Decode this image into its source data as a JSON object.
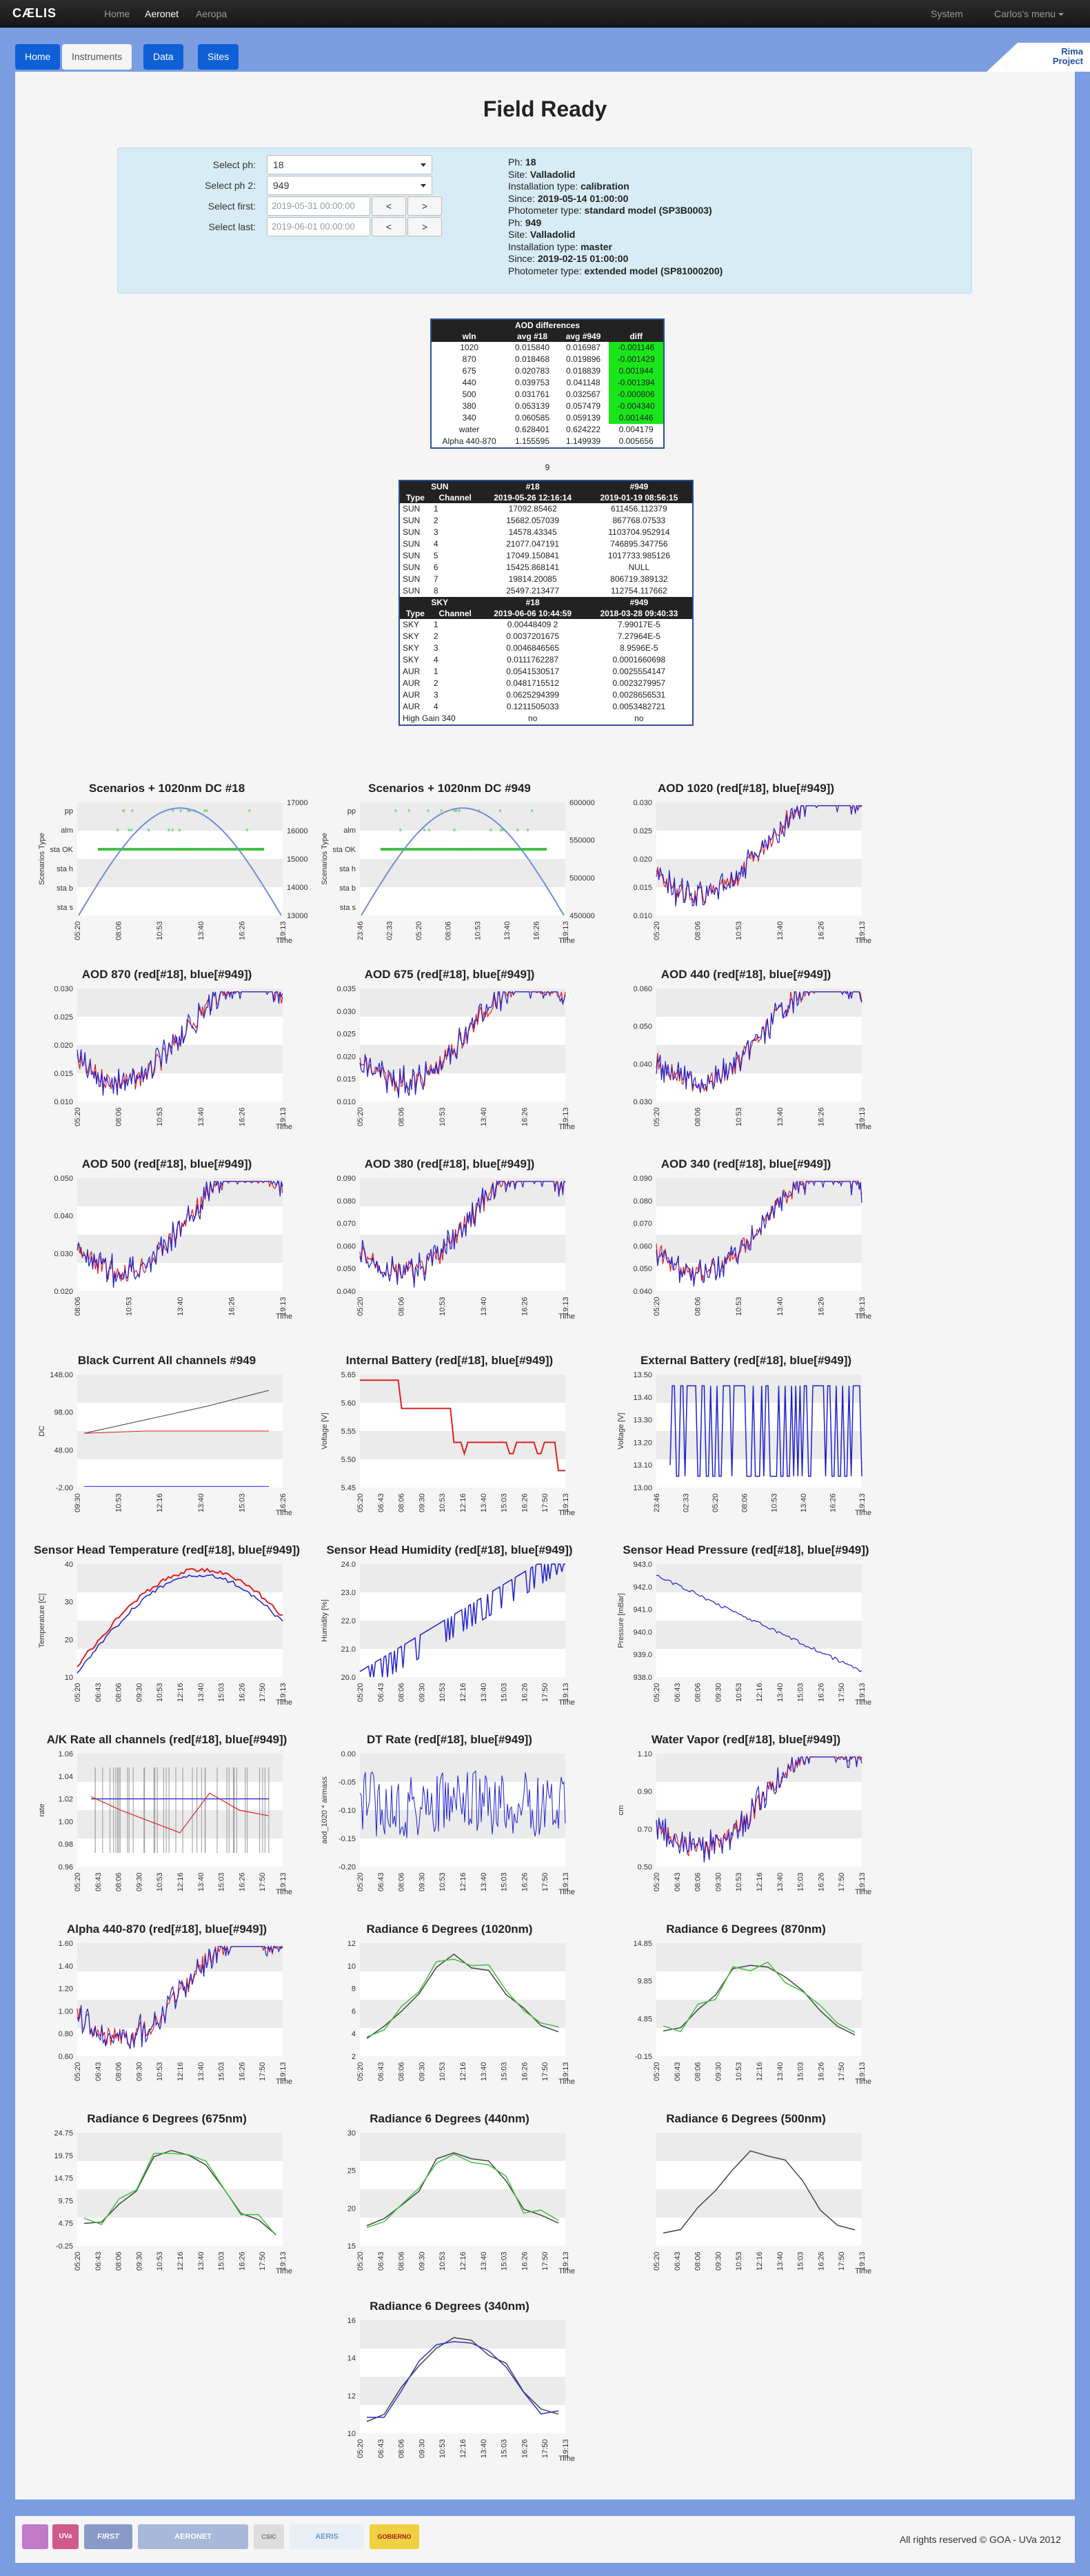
{
  "navbar": {
    "brand": "CÆLIS",
    "links": [
      "Home",
      "Aeronet",
      "Aeropa"
    ],
    "system": "System",
    "user_menu": "Carlos's menu"
  },
  "subnav": {
    "tabs": [
      "Home",
      "Instruments",
      "Data",
      "Sites"
    ]
  },
  "rima": {
    "line1": "Rima",
    "line2": "Project"
  },
  "page": {
    "title": "Field Ready"
  },
  "form": {
    "ph_label": "Select ph:",
    "ph_value": "18",
    "ph2_label": "Select ph 2:",
    "ph2_value": "949",
    "first_label": "Select first:",
    "first_value": "2019-05-31 00:00:00",
    "last_label": "Select last:",
    "last_value": "2019-06-01 00:00:00",
    "prev": "<",
    "next": ">"
  },
  "info1": {
    "ph_label": "Ph:",
    "ph": "18",
    "site_label": "Site:",
    "site": "Valladolid",
    "inst_label": "Installation type:",
    "inst": "calibration",
    "since_label": "Since:",
    "since": "2019-05-14 01:00:00",
    "model_label": "Photometer type:",
    "model": "standard model (SP3B0003)"
  },
  "info2": {
    "ph_label": "Ph:",
    "ph": "949",
    "site_label": "Site:",
    "site": "Valladolid",
    "inst_label": "Installation type:",
    "inst": "master",
    "since_label": "Since:",
    "since": "2019-02-15 01:00:00",
    "model_label": "Photometer type:",
    "model": "extended model (SP81000200)"
  },
  "aod_table": {
    "title": "AOD differences",
    "headers": [
      "wln",
      "avg #18",
      "avg #949",
      "diff"
    ],
    "rows": [
      [
        "1020",
        "0.015840",
        "0.016987",
        "-0.001146"
      ],
      [
        "870",
        "0.018468",
        "0.019896",
        "-0.001429"
      ],
      [
        "675",
        "0.020783",
        "0.018839",
        "0.001944"
      ],
      [
        "440",
        "0.039753",
        "0.041148",
        "-0.001394"
      ],
      [
        "500",
        "0.031761",
        "0.032567",
        "-0.000806"
      ],
      [
        "380",
        "0.053139",
        "0.057479",
        "-0.004340"
      ],
      [
        "340",
        "0.060585",
        "0.059139",
        "0.001446"
      ],
      [
        "water",
        "0.628401",
        "0.624222",
        "0.004179"
      ],
      [
        "Alpha 440-870",
        "1.155595",
        "1.149939",
        "0.005656"
      ]
    ],
    "count": "9"
  },
  "cal_table": {
    "sun_title": "SUN",
    "h18": "#18",
    "h949": "#949",
    "type_hdr": "Type",
    "chan_hdr": "Channel",
    "sun_date18": "2019-05-26 12:16:14",
    "sun_date949": "2019-01-19 08:56:15",
    "sun_rows": [
      [
        "SUN",
        "1",
        "17092.85462",
        "611456.112379"
      ],
      [
        "SUN",
        "2",
        "15682.057039",
        "867768.07533"
      ],
      [
        "SUN",
        "3",
        "14578.43345",
        "1103704.952914"
      ],
      [
        "SUN",
        "4",
        "21077.047191",
        "746895.347756"
      ],
      [
        "SUN",
        "5",
        "17049.150841",
        "1017733.985126"
      ],
      [
        "SUN",
        "6",
        "15425.868141",
        "NULL"
      ],
      [
        "SUN",
        "7",
        "19814.20085",
        "806719.389132"
      ],
      [
        "SUN",
        "8",
        "25497.213477",
        "112754.117662"
      ]
    ],
    "sky_title": "SKY",
    "sky_date18": "2019-06-06 10:44:59",
    "sky_date949": "2018-03-28 09:40:33",
    "sky_rows": [
      [
        "SKY",
        "1",
        "0.00448409 2",
        "7.99017E-5"
      ],
      [
        "SKY",
        "2",
        "0.0037201675",
        "7.27964E-5"
      ],
      [
        "SKY",
        "3",
        "0.0046846565",
        "8.9596E-5"
      ],
      [
        "SKY",
        "4",
        "0.0111762287",
        "0.0001660698"
      ],
      [
        "AUR",
        "1",
        "0.0541530517",
        "0.0025554147"
      ],
      [
        "AUR",
        "2",
        "0.0481715512",
        "0.0023279957"
      ],
      [
        "AUR",
        "3",
        "0.0625294399",
        "0.0028656531"
      ],
      [
        "AUR",
        "4",
        "0.1211505033",
        "0.0053482721"
      ]
    ],
    "hg_label": "High Gain 340",
    "hg18": "no",
    "hg949": "no"
  },
  "charts": [
    {
      "title": "Scenarios + 1020nm DC #18",
      "ylabel": "Scenarios Type",
      "xlabel": "Time",
      "cats": [
        "pp",
        "alm",
        "sta OK",
        "sta h",
        "sta b",
        "sta s"
      ],
      "y2": [
        "17000",
        "16000",
        "15000",
        "14000",
        "13000"
      ],
      "xt": [
        "05:20",
        "08:06",
        "10:53",
        "13:40",
        "16:26",
        "19:13"
      ],
      "kind": "scen"
    },
    {
      "title": "Scenarios + 1020nm DC #949",
      "ylabel": "Scenarios Type",
      "xlabel": "Time",
      "cats": [
        "pp",
        "alm",
        "sta OK",
        "sta h",
        "sta b",
        "sta s"
      ],
      "y2": [
        "600000",
        "550000",
        "500000",
        "450000"
      ],
      "xt": [
        "23:46",
        "02:33",
        "05:20",
        "08:06",
        "10:53",
        "13:40",
        "16:26",
        "19:13"
      ],
      "kind": "scen"
    },
    {
      "title": "AOD 1020 (red[#18], blue[#949])",
      "ylabel": "",
      "xlabel": "Time",
      "yt": [
        "0.030",
        "0.025",
        "0.020",
        "0.015",
        "0.010"
      ],
      "xt": [
        "05:20",
        "08:06",
        "10:53",
        "13:40",
        "16:26",
        "19:13"
      ],
      "kind": "aod"
    },
    {
      "title": "AOD 870 (red[#18], blue[#949])",
      "ylabel": "",
      "xlabel": "Time",
      "yt": [
        "0.030",
        "0.025",
        "0.020",
        "0.015",
        "0.010"
      ],
      "xt": [
        "05:20",
        "08:06",
        "10:53",
        "13:40",
        "16:26",
        "19:13"
      ],
      "kind": "aod"
    },
    {
      "title": "AOD 675 (red[#18], blue[#949])",
      "ylabel": "",
      "xlabel": "Time",
      "yt": [
        "0.035",
        "0.030",
        "0.025",
        "0.020",
        "0.015",
        "0.010"
      ],
      "xt": [
        "05:20",
        "08:06",
        "10:53",
        "13:40",
        "16:26",
        "19:13"
      ],
      "kind": "aod"
    },
    {
      "title": "AOD 440 (red[#18], blue[#949])",
      "ylabel": "",
      "xlabel": "Time",
      "yt": [
        "0.060",
        "0.050",
        "0.040",
        "0.030"
      ],
      "xt": [
        "05:20",
        "08:06",
        "10:53",
        "13:40",
        "16:26",
        "19:13"
      ],
      "kind": "aod"
    },
    {
      "title": "AOD 500 (red[#18], blue[#949])",
      "ylabel": "",
      "xlabel": "Time",
      "yt": [
        "0.050",
        "0.040",
        "0.030",
        "0.020"
      ],
      "xt": [
        "08:06",
        "10:53",
        "13:40",
        "16:26",
        "19:13"
      ],
      "kind": "aod"
    },
    {
      "title": "AOD 380 (red[#18], blue[#949])",
      "ylabel": "",
      "xlabel": "Time",
      "yt": [
        "0.090",
        "0.080",
        "0.070",
        "0.060",
        "0.050",
        "0.040"
      ],
      "xt": [
        "05:20",
        "08:06",
        "10:53",
        "13:40",
        "16:26",
        "19:13"
      ],
      "kind": "aod"
    },
    {
      "title": "AOD 340 (red[#18], blue[#949])",
      "ylabel": "",
      "xlabel": "Time",
      "yt": [
        "0.090",
        "0.080",
        "0.070",
        "0.060",
        "0.050",
        "0.040"
      ],
      "xt": [
        "05:20",
        "08:06",
        "10:53",
        "13:40",
        "16:26",
        "19:13"
      ],
      "kind": "aod"
    },
    {
      "title": "Black Current All channels #949",
      "ylabel": "DC",
      "xlabel": "Time",
      "yt": [
        "148.00",
        "98.00",
        "48.00",
        "-2.00"
      ],
      "xt": [
        "09:30",
        "10:53",
        "12:16",
        "13:40",
        "15:03",
        "16:26"
      ],
      "kind": "bc"
    },
    {
      "title": "Internal Battery (red[#18], blue[#949])",
      "ylabel": "Voltage [V]",
      "xlabel": "Time",
      "yt": [
        "5.65",
        "5.60",
        "5.55",
        "5.50",
        "5.45"
      ],
      "xt": [
        "05:20",
        "06:43",
        "08:06",
        "09:30",
        "10:53",
        "12:16",
        "13:40",
        "15:03",
        "16:26",
        "17:50",
        "19:13"
      ],
      "kind": "ib"
    },
    {
      "title": "External Battery (red[#18], blue[#949])",
      "ylabel": "Voltage [V]",
      "xlabel": "Time",
      "yt": [
        "13.50",
        "13.40",
        "13.30",
        "13.20",
        "13.10",
        "13.00"
      ],
      "xt": [
        "23:46",
        "02:33",
        "05:20",
        "08:06",
        "10:53",
        "13:40",
        "16:26",
        "19:13"
      ],
      "kind": "eb"
    },
    {
      "title": "Sensor Head Temperature (red[#18], blue[#949])",
      "ylabel": "Temperature [C]",
      "xlabel": "Time",
      "yt": [
        "40",
        "30",
        "20",
        "10"
      ],
      "xt": [
        "05:20",
        "06:43",
        "08:06",
        "09:30",
        "10:53",
        "12:16",
        "13:40",
        "15:03",
        "16:26",
        "17:50",
        "19:13"
      ],
      "kind": "temp"
    },
    {
      "title": "Sensor Head Humidity (red[#18], blue[#949])",
      "ylabel": "Humidity [%]",
      "xlabel": "Time",
      "yt": [
        "24.0",
        "23.0",
        "22.0",
        "21.0",
        "20.0"
      ],
      "xt": [
        "05:20",
        "06:43",
        "08:06",
        "09:30",
        "10:53",
        "12:16",
        "13:40",
        "15:03",
        "16:26",
        "17:50",
        "19:13"
      ],
      "kind": "hum"
    },
    {
      "title": "Sensor Head Pressure (red[#18], blue[#949])",
      "ylabel": "Pressure [mBar]",
      "xlabel": "Time",
      "yt": [
        "943.0",
        "942.0",
        "941.0",
        "940.0",
        "939.0",
        "938.0"
      ],
      "xt": [
        "05:20",
        "06:43",
        "08:06",
        "09:30",
        "10:53",
        "12:16",
        "13:40",
        "15:03",
        "16:26",
        "17:50",
        "19:13"
      ],
      "kind": "pres"
    },
    {
      "title": "A/K Rate all channels (red[#18], blue[#949])",
      "ylabel": "rate",
      "xlabel": "Time",
      "yt": [
        "1.06",
        "1.04",
        "1.02",
        "1.00",
        "0.98",
        "0.96"
      ],
      "xt": [
        "05:20",
        "06:43",
        "08:06",
        "09:30",
        "10:53",
        "12:16",
        "13:40",
        "15:03",
        "16:26",
        "17:50",
        "19:13"
      ],
      "kind": "ak"
    },
    {
      "title": "DT Rate (red[#18], blue[#949])",
      "ylabel": "aod_1020 * airmass",
      "xlabel": "Time",
      "yt": [
        "0.00",
        "-0.05",
        "-0.10",
        "-0.15",
        "-0.20"
      ],
      "xt": [
        "05:20",
        "06:43",
        "08:06",
        "09:30",
        "10:53",
        "12:16",
        "13:40",
        "15:03",
        "16:26",
        "17:50",
        "19:13"
      ],
      "kind": "dt"
    },
    {
      "title": "Water Vapor (red[#18], blue[#949])",
      "ylabel": "cm",
      "xlabel": "Time",
      "yt": [
        "1.10",
        "0.90",
        "0.70",
        "0.50"
      ],
      "xt": [
        "05:20",
        "06:43",
        "08:06",
        "09:30",
        "10:53",
        "12:16",
        "13:40",
        "15:03",
        "16:26",
        "17:50",
        "19:13"
      ],
      "kind": "wv"
    },
    {
      "title": "Alpha 440-870 (red[#18], blue[#949])",
      "ylabel": "",
      "xlabel": "Time",
      "yt": [
        "1.60",
        "1.40",
        "1.20",
        "1.00",
        "0.80",
        "0.60"
      ],
      "xt": [
        "05:20",
        "06:43",
        "08:06",
        "09:30",
        "10:53",
        "12:16",
        "13:40",
        "15:03",
        "16:26",
        "17:50",
        "19:13"
      ],
      "kind": "alpha"
    },
    {
      "title": "Radiance 6 Degrees (1020nm)",
      "ylabel": "",
      "xlabel": "Time",
      "yt": [
        "12",
        "10",
        "8",
        "6",
        "4",
        "2"
      ],
      "xt": [
        "05:20",
        "06:43",
        "08:06",
        "09:30",
        "10:53",
        "12:16",
        "13:40",
        "15:03",
        "16:26",
        "17:50",
        "19:13"
      ],
      "kind": "rad"
    },
    {
      "title": "Radiance 6 Degrees (870nm)",
      "ylabel": "",
      "xlabel": "Time",
      "yt": [
        "14.85",
        "9.85",
        "4.85",
        "-0.15"
      ],
      "xt": [
        "05:20",
        "06:43",
        "08:06",
        "09:30",
        "10:53",
        "12:16",
        "13:40",
        "15:03",
        "16:26",
        "17:50",
        "19:13"
      ],
      "kind": "rad"
    },
    {
      "title": "Radiance 6 Degrees (675nm)",
      "ylabel": "",
      "xlabel": "Time",
      "yt": [
        "24.75",
        "19.75",
        "14.75",
        "9.75",
        "4.75",
        "-0.25"
      ],
      "xt": [
        "05:20",
        "06:43",
        "08:06",
        "09:30",
        "10:53",
        "12:16",
        "13:40",
        "15:03",
        "16:26",
        "17:50",
        "19:13"
      ],
      "kind": "rad"
    },
    {
      "title": "Radiance 6 Degrees (440nm)",
      "ylabel": "",
      "xlabel": "Time",
      "yt": [
        "30",
        "25",
        "20",
        "15"
      ],
      "xt": [
        "05:20",
        "06:43",
        "08:06",
        "09:30",
        "10:53",
        "12:16",
        "13:40",
        "15:03",
        "16:26",
        "17:50",
        "19:13"
      ],
      "kind": "rad440"
    },
    {
      "title": "Radiance 6 Degrees (500nm)",
      "ylabel": "",
      "xlabel": "Time",
      "yt": [],
      "xt": [
        "05:20",
        "06:43",
        "08:06",
        "09:30",
        "10:53",
        "12:16",
        "13:40",
        "15:03",
        "16:26",
        "17:50",
        "19:13"
      ],
      "kind": "rad500"
    },
    {
      "title": "Radiance 6 Degrees (340nm)",
      "ylabel": "",
      "xlabel": "Time",
      "yt": [
        "16",
        "14",
        "12",
        "10"
      ],
      "xt": [
        "05:20",
        "06:43",
        "08:06",
        "09:30",
        "10:53",
        "12:16",
        "13:40",
        "15:03",
        "16:26",
        "17:50",
        "19:13"
      ],
      "kind": "rad340"
    }
  ],
  "footer": {
    "copyright": "All rights reserved © GOA - UVa 2012",
    "logos": [
      "GOA",
      "UVa",
      "FIRST",
      "AERONET",
      "CSIC",
      "AERIS",
      "GOBIERNO"
    ]
  }
}
